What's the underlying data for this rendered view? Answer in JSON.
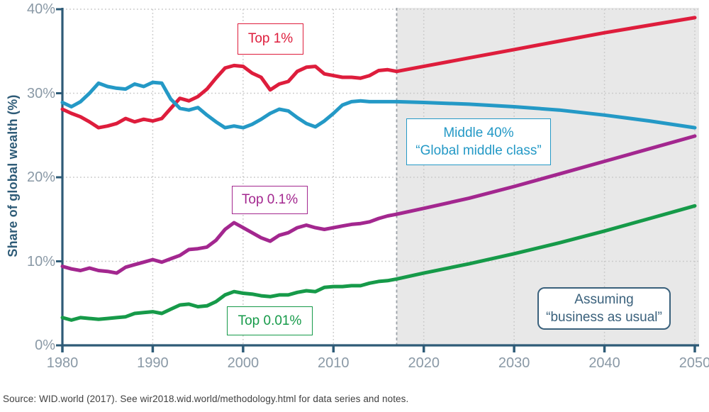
{
  "page": {
    "background": "#ffffff"
  },
  "footer": {
    "source": "Source: WID.world (2017). See wir2018.wid.world/methodology.html for data series and notes."
  },
  "annotations": {
    "top1": {
      "text": "Top 1%"
    },
    "middle40": {
      "line1": "Middle 40%",
      "line2": "“Global middle class”"
    },
    "top01": {
      "text": "Top 0.1%"
    },
    "top001": {
      "text": "Top 0.01%"
    },
    "assumption": {
      "line1": "Assuming",
      "line2": "“business as usual”"
    }
  },
  "chart_data": {
    "type": "line",
    "title": "",
    "xlabel": "",
    "ylabel": "Share of global wealth (%)",
    "xlim": [
      1980,
      2050
    ],
    "ylim": [
      0,
      40
    ],
    "x_ticks": [
      1980,
      1990,
      2000,
      2010,
      2020,
      2030,
      2040,
      2050
    ],
    "y_ticks": [
      0,
      10,
      20,
      30,
      40
    ],
    "y_tick_suffix": "%",
    "grid": "dotted",
    "legend_position": "inline-boxes",
    "projection": {
      "start_year": 2017,
      "end_year": 2050,
      "region_color": "#e8e8e8",
      "divider_style": "dashed",
      "divider_color": "#9aa0a6",
      "note_line1": "Assuming",
      "note_line2": "“business as usual”"
    },
    "colors": {
      "axis": "#2e5b77",
      "tick_text": "#8a99a6",
      "grid": "#c9c9c9",
      "top1": "#de1d3c",
      "middle40": "#2499c6",
      "top01": "#a3278f",
      "top001": "#169a49",
      "note": "#3a617c",
      "source_text": "#404040"
    },
    "series": [
      {
        "name": "Top 1%",
        "color": "#de1d3c",
        "points": [
          [
            1980,
            28.1
          ],
          [
            1981,
            27.6
          ],
          [
            1982,
            27.2
          ],
          [
            1983,
            26.6
          ],
          [
            1984,
            25.9
          ],
          [
            1985,
            26.1
          ],
          [
            1986,
            26.4
          ],
          [
            1987,
            27.0
          ],
          [
            1988,
            26.6
          ],
          [
            1989,
            26.9
          ],
          [
            1990,
            26.7
          ],
          [
            1991,
            27.0
          ],
          [
            1992,
            28.2
          ],
          [
            1993,
            29.4
          ],
          [
            1994,
            29.1
          ],
          [
            1995,
            29.6
          ],
          [
            1996,
            30.5
          ],
          [
            1997,
            31.8
          ],
          [
            1998,
            33.0
          ],
          [
            1999,
            33.3
          ],
          [
            2000,
            33.2
          ],
          [
            2001,
            32.4
          ],
          [
            2002,
            31.9
          ],
          [
            2003,
            30.4
          ],
          [
            2004,
            31.1
          ],
          [
            2005,
            31.4
          ],
          [
            2006,
            32.6
          ],
          [
            2007,
            33.1
          ],
          [
            2008,
            33.2
          ],
          [
            2009,
            32.3
          ],
          [
            2010,
            32.1
          ],
          [
            2011,
            31.9
          ],
          [
            2012,
            31.9
          ],
          [
            2013,
            31.8
          ],
          [
            2014,
            32.1
          ],
          [
            2015,
            32.7
          ],
          [
            2016,
            32.8
          ],
          [
            2017,
            32.6
          ],
          [
            2020,
            33.2
          ],
          [
            2025,
            34.2
          ],
          [
            2030,
            35.2
          ],
          [
            2035,
            36.2
          ],
          [
            2040,
            37.2
          ],
          [
            2045,
            38.1
          ],
          [
            2050,
            39.0
          ]
        ]
      },
      {
        "name": "Middle 40%",
        "color": "#2499c6",
        "points": [
          [
            1980,
            28.9
          ],
          [
            1981,
            28.4
          ],
          [
            1982,
            29.0
          ],
          [
            1983,
            30.0
          ],
          [
            1984,
            31.2
          ],
          [
            1985,
            30.8
          ],
          [
            1986,
            30.6
          ],
          [
            1987,
            30.5
          ],
          [
            1988,
            31.1
          ],
          [
            1989,
            30.8
          ],
          [
            1990,
            31.3
          ],
          [
            1991,
            31.2
          ],
          [
            1992,
            29.3
          ],
          [
            1993,
            28.2
          ],
          [
            1994,
            28.0
          ],
          [
            1995,
            28.3
          ],
          [
            1996,
            27.4
          ],
          [
            1997,
            26.6
          ],
          [
            1998,
            25.9
          ],
          [
            1999,
            26.1
          ],
          [
            2000,
            25.9
          ],
          [
            2001,
            26.3
          ],
          [
            2002,
            26.9
          ],
          [
            2003,
            27.6
          ],
          [
            2004,
            28.1
          ],
          [
            2005,
            27.9
          ],
          [
            2006,
            27.1
          ],
          [
            2007,
            26.4
          ],
          [
            2008,
            26.0
          ],
          [
            2009,
            26.7
          ],
          [
            2010,
            27.6
          ],
          [
            2011,
            28.6
          ],
          [
            2012,
            29.0
          ],
          [
            2013,
            29.1
          ],
          [
            2014,
            29.0
          ],
          [
            2015,
            29.0
          ],
          [
            2016,
            29.0
          ],
          [
            2017,
            29.0
          ],
          [
            2020,
            28.9
          ],
          [
            2025,
            28.7
          ],
          [
            2030,
            28.4
          ],
          [
            2035,
            28.0
          ],
          [
            2040,
            27.4
          ],
          [
            2045,
            26.7
          ],
          [
            2050,
            25.9
          ]
        ]
      },
      {
        "name": "Top 0.1%",
        "color": "#a3278f",
        "points": [
          [
            1980,
            9.4
          ],
          [
            1981,
            9.1
          ],
          [
            1982,
            8.9
          ],
          [
            1983,
            9.2
          ],
          [
            1984,
            8.9
          ],
          [
            1985,
            8.8
          ],
          [
            1986,
            8.6
          ],
          [
            1987,
            9.3
          ],
          [
            1988,
            9.6
          ],
          [
            1989,
            9.9
          ],
          [
            1990,
            10.2
          ],
          [
            1991,
            9.9
          ],
          [
            1992,
            10.3
          ],
          [
            1993,
            10.7
          ],
          [
            1994,
            11.4
          ],
          [
            1995,
            11.5
          ],
          [
            1996,
            11.7
          ],
          [
            1997,
            12.5
          ],
          [
            1998,
            13.8
          ],
          [
            1999,
            14.6
          ],
          [
            2000,
            14.0
          ],
          [
            2001,
            13.4
          ],
          [
            2002,
            12.8
          ],
          [
            2003,
            12.4
          ],
          [
            2004,
            13.1
          ],
          [
            2005,
            13.4
          ],
          [
            2006,
            14.0
          ],
          [
            2007,
            14.3
          ],
          [
            2008,
            14.0
          ],
          [
            2009,
            13.8
          ],
          [
            2010,
            14.0
          ],
          [
            2011,
            14.2
          ],
          [
            2012,
            14.4
          ],
          [
            2013,
            14.5
          ],
          [
            2014,
            14.7
          ],
          [
            2015,
            15.1
          ],
          [
            2016,
            15.4
          ],
          [
            2017,
            15.6
          ],
          [
            2020,
            16.3
          ],
          [
            2025,
            17.5
          ],
          [
            2030,
            18.9
          ],
          [
            2035,
            20.4
          ],
          [
            2040,
            21.9
          ],
          [
            2045,
            23.4
          ],
          [
            2050,
            24.9
          ]
        ]
      },
      {
        "name": "Top 0.01%",
        "color": "#169a49",
        "points": [
          [
            1980,
            3.3
          ],
          [
            1981,
            3.0
          ],
          [
            1982,
            3.3
          ],
          [
            1983,
            3.2
          ],
          [
            1984,
            3.1
          ],
          [
            1985,
            3.2
          ],
          [
            1986,
            3.3
          ],
          [
            1987,
            3.4
          ],
          [
            1988,
            3.8
          ],
          [
            1989,
            3.9
          ],
          [
            1990,
            4.0
          ],
          [
            1991,
            3.8
          ],
          [
            1992,
            4.3
          ],
          [
            1993,
            4.8
          ],
          [
            1994,
            4.9
          ],
          [
            1995,
            4.6
          ],
          [
            1996,
            4.7
          ],
          [
            1997,
            5.2
          ],
          [
            1998,
            6.0
          ],
          [
            1999,
            6.4
          ],
          [
            2000,
            6.2
          ],
          [
            2001,
            6.1
          ],
          [
            2002,
            5.9
          ],
          [
            2003,
            5.8
          ],
          [
            2004,
            6.0
          ],
          [
            2005,
            6.0
          ],
          [
            2006,
            6.3
          ],
          [
            2007,
            6.5
          ],
          [
            2008,
            6.4
          ],
          [
            2009,
            6.9
          ],
          [
            2010,
            7.0
          ],
          [
            2011,
            7.0
          ],
          [
            2012,
            7.1
          ],
          [
            2013,
            7.1
          ],
          [
            2014,
            7.4
          ],
          [
            2015,
            7.6
          ],
          [
            2016,
            7.7
          ],
          [
            2017,
            7.9
          ],
          [
            2020,
            8.6
          ],
          [
            2025,
            9.7
          ],
          [
            2030,
            10.9
          ],
          [
            2035,
            12.2
          ],
          [
            2040,
            13.6
          ],
          [
            2045,
            15.1
          ],
          [
            2050,
            16.6
          ]
        ]
      }
    ]
  }
}
